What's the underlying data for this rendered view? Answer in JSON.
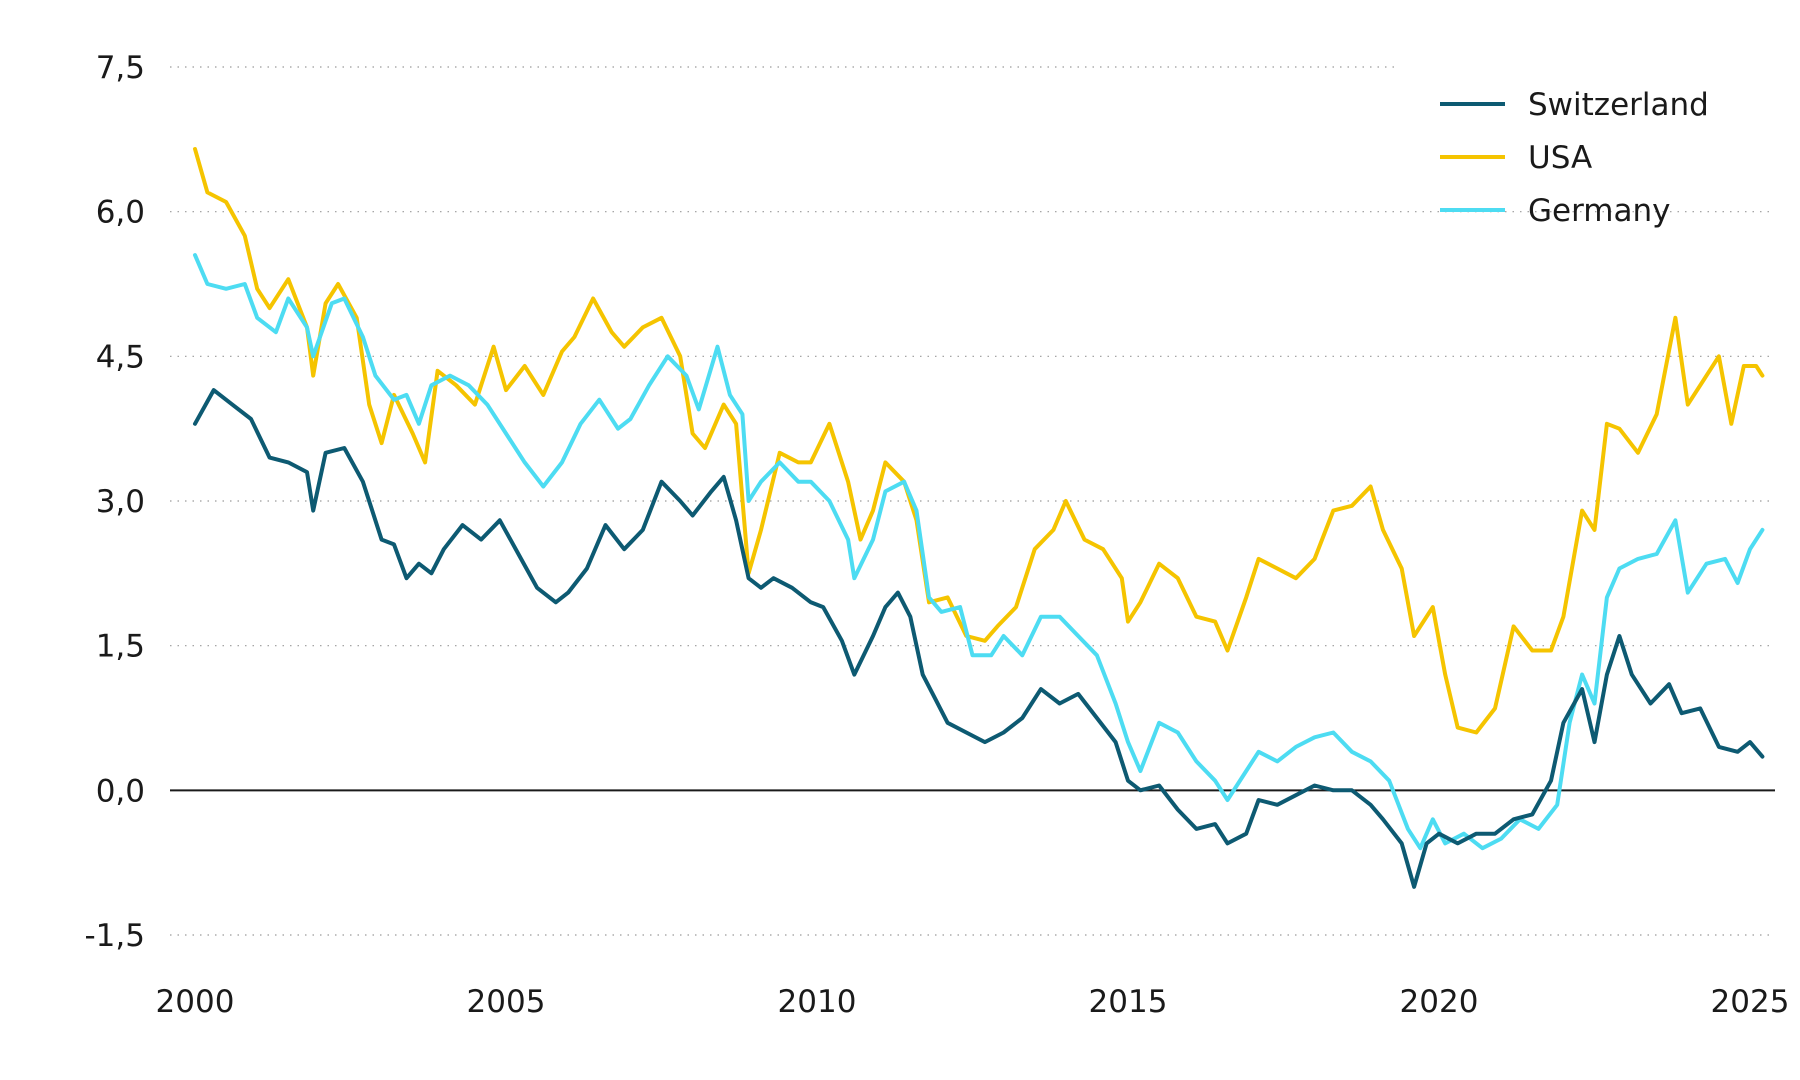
{
  "chart_data": {
    "type": "line",
    "title": "",
    "xlabel": "",
    "ylabel": "",
    "xlim": [
      2000,
      2025.2
    ],
    "ylim": [
      -1.5,
      7.5
    ],
    "yticks": [
      -1.5,
      0.0,
      1.5,
      3.0,
      4.5,
      6.0,
      7.5
    ],
    "ytick_labels": [
      "-1,5",
      "0,0",
      "1,5",
      "3,0",
      "4,5",
      "6,0",
      "7,5"
    ],
    "xticks": [
      2000,
      2005,
      2010,
      2015,
      2020,
      2025
    ],
    "xtick_labels": [
      "2000",
      "2005",
      "2010",
      "2015",
      "2020",
      "2025"
    ],
    "grid": "horizontal dotted",
    "zero_line": true,
    "legend_position": "top-right",
    "series": [
      {
        "name": "Switzerland",
        "color": "#0d5a72",
        "points": [
          [
            2000.0,
            3.8
          ],
          [
            2000.3,
            4.15
          ],
          [
            2000.6,
            4.0
          ],
          [
            2000.9,
            3.85
          ],
          [
            2001.2,
            3.45
          ],
          [
            2001.5,
            3.4
          ],
          [
            2001.8,
            3.3
          ],
          [
            2001.9,
            2.9
          ],
          [
            2002.1,
            3.5
          ],
          [
            2002.4,
            3.55
          ],
          [
            2002.7,
            3.2
          ],
          [
            2003.0,
            2.6
          ],
          [
            2003.2,
            2.55
          ],
          [
            2003.4,
            2.2
          ],
          [
            2003.6,
            2.35
          ],
          [
            2003.8,
            2.25
          ],
          [
            2004.0,
            2.5
          ],
          [
            2004.3,
            2.75
          ],
          [
            2004.6,
            2.6
          ],
          [
            2004.9,
            2.8
          ],
          [
            2005.2,
            2.45
          ],
          [
            2005.5,
            2.1
          ],
          [
            2005.8,
            1.95
          ],
          [
            2006.0,
            2.05
          ],
          [
            2006.3,
            2.3
          ],
          [
            2006.6,
            2.75
          ],
          [
            2006.9,
            2.5
          ],
          [
            2007.2,
            2.7
          ],
          [
            2007.5,
            3.2
          ],
          [
            2007.8,
            3.0
          ],
          [
            2008.0,
            2.85
          ],
          [
            2008.3,
            3.1
          ],
          [
            2008.5,
            3.25
          ],
          [
            2008.7,
            2.8
          ],
          [
            2008.9,
            2.2
          ],
          [
            2009.1,
            2.1
          ],
          [
            2009.3,
            2.2
          ],
          [
            2009.6,
            2.1
          ],
          [
            2009.9,
            1.95
          ],
          [
            2010.1,
            1.9
          ],
          [
            2010.4,
            1.55
          ],
          [
            2010.6,
            1.2
          ],
          [
            2010.9,
            1.6
          ],
          [
            2011.1,
            1.9
          ],
          [
            2011.3,
            2.05
          ],
          [
            2011.5,
            1.8
          ],
          [
            2011.7,
            1.2
          ],
          [
            2011.9,
            0.95
          ],
          [
            2012.1,
            0.7
          ],
          [
            2012.4,
            0.6
          ],
          [
            2012.7,
            0.5
          ],
          [
            2013.0,
            0.6
          ],
          [
            2013.3,
            0.75
          ],
          [
            2013.6,
            1.05
          ],
          [
            2013.9,
            0.9
          ],
          [
            2014.2,
            1.0
          ],
          [
            2014.5,
            0.75
          ],
          [
            2014.8,
            0.5
          ],
          [
            2015.0,
            0.1
          ],
          [
            2015.2,
            0.0
          ],
          [
            2015.5,
            0.05
          ],
          [
            2015.8,
            -0.2
          ],
          [
            2016.1,
            -0.4
          ],
          [
            2016.4,
            -0.35
          ],
          [
            2016.6,
            -0.55
          ],
          [
            2016.9,
            -0.45
          ],
          [
            2017.1,
            -0.1
          ],
          [
            2017.4,
            -0.15
          ],
          [
            2017.7,
            -0.05
          ],
          [
            2018.0,
            0.05
          ],
          [
            2018.3,
            0.0
          ],
          [
            2018.6,
            0.0
          ],
          [
            2018.9,
            -0.15
          ],
          [
            2019.1,
            -0.3
          ],
          [
            2019.4,
            -0.55
          ],
          [
            2019.6,
            -1.0
          ],
          [
            2019.8,
            -0.55
          ],
          [
            2020.0,
            -0.45
          ],
          [
            2020.3,
            -0.55
          ],
          [
            2020.6,
            -0.45
          ],
          [
            2020.9,
            -0.45
          ],
          [
            2021.2,
            -0.3
          ],
          [
            2021.5,
            -0.25
          ],
          [
            2021.8,
            0.1
          ],
          [
            2022.0,
            0.7
          ],
          [
            2022.3,
            1.05
          ],
          [
            2022.5,
            0.5
          ],
          [
            2022.7,
            1.2
          ],
          [
            2022.9,
            1.6
          ],
          [
            2023.1,
            1.2
          ],
          [
            2023.4,
            0.9
          ],
          [
            2023.7,
            1.1
          ],
          [
            2023.9,
            0.8
          ],
          [
            2024.2,
            0.85
          ],
          [
            2024.5,
            0.45
          ],
          [
            2024.8,
            0.4
          ],
          [
            2025.0,
            0.5
          ],
          [
            2025.2,
            0.35
          ]
        ]
      },
      {
        "name": "USA",
        "color": "#f5c400",
        "points": [
          [
            2000.0,
            6.65
          ],
          [
            2000.2,
            6.2
          ],
          [
            2000.5,
            6.1
          ],
          [
            2000.8,
            5.75
          ],
          [
            2001.0,
            5.2
          ],
          [
            2001.2,
            5.0
          ],
          [
            2001.5,
            5.3
          ],
          [
            2001.8,
            4.8
          ],
          [
            2001.9,
            4.3
          ],
          [
            2002.1,
            5.05
          ],
          [
            2002.3,
            5.25
          ],
          [
            2002.6,
            4.9
          ],
          [
            2002.8,
            4.0
          ],
          [
            2003.0,
            3.6
          ],
          [
            2003.2,
            4.1
          ],
          [
            2003.5,
            3.7
          ],
          [
            2003.7,
            3.4
          ],
          [
            2003.9,
            4.35
          ],
          [
            2004.2,
            4.2
          ],
          [
            2004.5,
            4.0
          ],
          [
            2004.8,
            4.6
          ],
          [
            2005.0,
            4.15
          ],
          [
            2005.3,
            4.4
          ],
          [
            2005.6,
            4.1
          ],
          [
            2005.9,
            4.55
          ],
          [
            2006.1,
            4.7
          ],
          [
            2006.4,
            5.1
          ],
          [
            2006.7,
            4.75
          ],
          [
            2006.9,
            4.6
          ],
          [
            2007.2,
            4.8
          ],
          [
            2007.5,
            4.9
          ],
          [
            2007.8,
            4.5
          ],
          [
            2008.0,
            3.7
          ],
          [
            2008.2,
            3.55
          ],
          [
            2008.5,
            4.0
          ],
          [
            2008.7,
            3.8
          ],
          [
            2008.9,
            2.25
          ],
          [
            2009.1,
            2.7
          ],
          [
            2009.4,
            3.5
          ],
          [
            2009.7,
            3.4
          ],
          [
            2009.9,
            3.4
          ],
          [
            2010.2,
            3.8
          ],
          [
            2010.5,
            3.2
          ],
          [
            2010.7,
            2.6
          ],
          [
            2010.9,
            2.9
          ],
          [
            2011.1,
            3.4
          ],
          [
            2011.4,
            3.2
          ],
          [
            2011.6,
            2.8
          ],
          [
            2011.8,
            1.95
          ],
          [
            2012.1,
            2.0
          ],
          [
            2012.4,
            1.6
          ],
          [
            2012.7,
            1.55
          ],
          [
            2012.9,
            1.7
          ],
          [
            2013.2,
            1.9
          ],
          [
            2013.5,
            2.5
          ],
          [
            2013.8,
            2.7
          ],
          [
            2014.0,
            3.0
          ],
          [
            2014.3,
            2.6
          ],
          [
            2014.6,
            2.5
          ],
          [
            2014.9,
            2.2
          ],
          [
            2015.0,
            1.75
          ],
          [
            2015.2,
            1.95
          ],
          [
            2015.5,
            2.35
          ],
          [
            2015.8,
            2.2
          ],
          [
            2016.1,
            1.8
          ],
          [
            2016.4,
            1.75
          ],
          [
            2016.6,
            1.45
          ],
          [
            2016.9,
            2.0
          ],
          [
            2017.1,
            2.4
          ],
          [
            2017.4,
            2.3
          ],
          [
            2017.7,
            2.2
          ],
          [
            2018.0,
            2.4
          ],
          [
            2018.3,
            2.9
          ],
          [
            2018.6,
            2.95
          ],
          [
            2018.9,
            3.15
          ],
          [
            2019.1,
            2.7
          ],
          [
            2019.4,
            2.3
          ],
          [
            2019.6,
            1.6
          ],
          [
            2019.9,
            1.9
          ],
          [
            2020.1,
            1.2
          ],
          [
            2020.3,
            0.65
          ],
          [
            2020.6,
            0.6
          ],
          [
            2020.9,
            0.85
          ],
          [
            2021.2,
            1.7
          ],
          [
            2021.5,
            1.45
          ],
          [
            2021.8,
            1.45
          ],
          [
            2022.0,
            1.8
          ],
          [
            2022.3,
            2.9
          ],
          [
            2022.5,
            2.7
          ],
          [
            2022.7,
            3.8
          ],
          [
            2022.9,
            3.75
          ],
          [
            2023.2,
            3.5
          ],
          [
            2023.5,
            3.9
          ],
          [
            2023.8,
            4.9
          ],
          [
            2024.0,
            4.0
          ],
          [
            2024.3,
            4.3
          ],
          [
            2024.5,
            4.5
          ],
          [
            2024.7,
            3.8
          ],
          [
            2024.9,
            4.4
          ],
          [
            2025.1,
            4.4
          ],
          [
            2025.2,
            4.3
          ]
        ]
      },
      {
        "name": "Germany",
        "color": "#4ddcf2",
        "points": [
          [
            2000.0,
            5.55
          ],
          [
            2000.2,
            5.25
          ],
          [
            2000.5,
            5.2
          ],
          [
            2000.8,
            5.25
          ],
          [
            2001.0,
            4.9
          ],
          [
            2001.3,
            4.75
          ],
          [
            2001.5,
            5.1
          ],
          [
            2001.8,
            4.8
          ],
          [
            2001.9,
            4.5
          ],
          [
            2002.2,
            5.05
          ],
          [
            2002.4,
            5.1
          ],
          [
            2002.7,
            4.7
          ],
          [
            2002.9,
            4.3
          ],
          [
            2003.2,
            4.05
          ],
          [
            2003.4,
            4.1
          ],
          [
            2003.6,
            3.8
          ],
          [
            2003.8,
            4.2
          ],
          [
            2004.1,
            4.3
          ],
          [
            2004.4,
            4.2
          ],
          [
            2004.7,
            4.0
          ],
          [
            2005.0,
            3.7
          ],
          [
            2005.3,
            3.4
          ],
          [
            2005.6,
            3.15
          ],
          [
            2005.9,
            3.4
          ],
          [
            2006.2,
            3.8
          ],
          [
            2006.5,
            4.05
          ],
          [
            2006.8,
            3.75
          ],
          [
            2007.0,
            3.85
          ],
          [
            2007.3,
            4.2
          ],
          [
            2007.6,
            4.5
          ],
          [
            2007.9,
            4.3
          ],
          [
            2008.1,
            3.95
          ],
          [
            2008.4,
            4.6
          ],
          [
            2008.6,
            4.1
          ],
          [
            2008.8,
            3.9
          ],
          [
            2008.9,
            3.0
          ],
          [
            2009.1,
            3.2
          ],
          [
            2009.4,
            3.4
          ],
          [
            2009.7,
            3.2
          ],
          [
            2009.9,
            3.2
          ],
          [
            2010.2,
            3.0
          ],
          [
            2010.5,
            2.6
          ],
          [
            2010.6,
            2.2
          ],
          [
            2010.9,
            2.6
          ],
          [
            2011.1,
            3.1
          ],
          [
            2011.4,
            3.2
          ],
          [
            2011.6,
            2.9
          ],
          [
            2011.8,
            2.0
          ],
          [
            2012.0,
            1.85
          ],
          [
            2012.3,
            1.9
          ],
          [
            2012.5,
            1.4
          ],
          [
            2012.8,
            1.4
          ],
          [
            2013.0,
            1.6
          ],
          [
            2013.3,
            1.4
          ],
          [
            2013.6,
            1.8
          ],
          [
            2013.9,
            1.8
          ],
          [
            2014.2,
            1.6
          ],
          [
            2014.5,
            1.4
          ],
          [
            2014.8,
            0.9
          ],
          [
            2015.0,
            0.5
          ],
          [
            2015.2,
            0.2
          ],
          [
            2015.5,
            0.7
          ],
          [
            2015.8,
            0.6
          ],
          [
            2016.1,
            0.3
          ],
          [
            2016.4,
            0.1
          ],
          [
            2016.6,
            -0.1
          ],
          [
            2016.9,
            0.2
          ],
          [
            2017.1,
            0.4
          ],
          [
            2017.4,
            0.3
          ],
          [
            2017.7,
            0.45
          ],
          [
            2018.0,
            0.55
          ],
          [
            2018.3,
            0.6
          ],
          [
            2018.6,
            0.4
          ],
          [
            2018.9,
            0.3
          ],
          [
            2019.2,
            0.1
          ],
          [
            2019.5,
            -0.4
          ],
          [
            2019.7,
            -0.6
          ],
          [
            2019.9,
            -0.3
          ],
          [
            2020.1,
            -0.55
          ],
          [
            2020.4,
            -0.45
          ],
          [
            2020.7,
            -0.6
          ],
          [
            2021.0,
            -0.5
          ],
          [
            2021.3,
            -0.3
          ],
          [
            2021.6,
            -0.4
          ],
          [
            2021.9,
            -0.15
          ],
          [
            2022.1,
            0.7
          ],
          [
            2022.3,
            1.2
          ],
          [
            2022.5,
            0.9
          ],
          [
            2022.7,
            2.0
          ],
          [
            2022.9,
            2.3
          ],
          [
            2023.2,
            2.4
          ],
          [
            2023.5,
            2.45
          ],
          [
            2023.8,
            2.8
          ],
          [
            2024.0,
            2.05
          ],
          [
            2024.3,
            2.35
          ],
          [
            2024.6,
            2.4
          ],
          [
            2024.8,
            2.15
          ],
          [
            2025.0,
            2.5
          ],
          [
            2025.2,
            2.7
          ]
        ]
      }
    ]
  }
}
